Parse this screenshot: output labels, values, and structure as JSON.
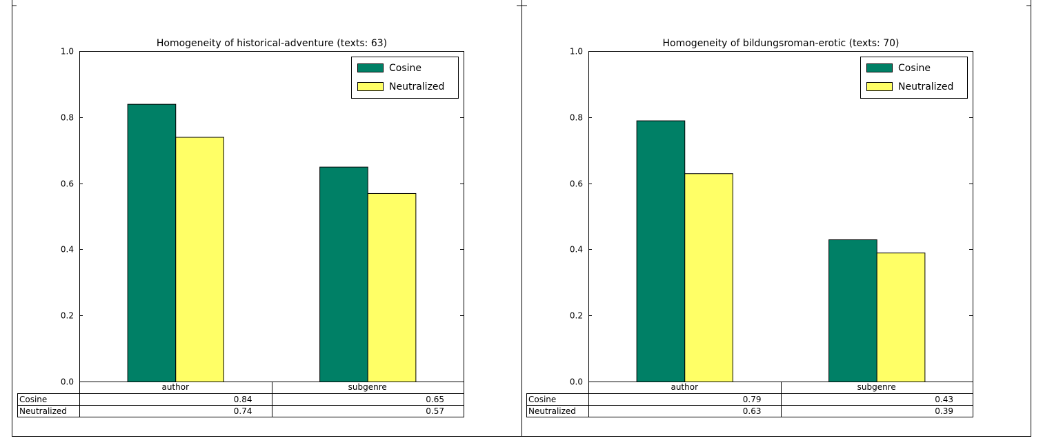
{
  "colors": {
    "cosine": "#008066",
    "neutralized": "#ffff66",
    "frame": "#000000",
    "background": "#ffffff"
  },
  "chart_data": [
    {
      "type": "bar",
      "title": "Homogeneity of historical-adventure (texts: 63)",
      "categories": [
        "author",
        "subgenre"
      ],
      "series": [
        {
          "name": "Cosine",
          "values": [
            0.84,
            0.65
          ]
        },
        {
          "name": "Neutralized",
          "values": [
            0.74,
            0.57
          ]
        }
      ],
      "ylim": [
        0.0,
        1.0
      ],
      "yticks": [
        "0.0",
        "0.2",
        "0.4",
        "0.6",
        "0.8",
        "1.0"
      ],
      "ytick_values": [
        0.0,
        0.2,
        0.4,
        0.6,
        0.8,
        1.0
      ],
      "legend": "top-right",
      "grid": false,
      "table": {
        "col_labels": [
          "author",
          "subgenre"
        ],
        "rows": [
          {
            "label": "Cosine",
            "cells": [
              "0.84",
              "0.65"
            ]
          },
          {
            "label": "Neutralized",
            "cells": [
              "0.74",
              "0.57"
            ]
          }
        ]
      }
    },
    {
      "type": "bar",
      "title": "Homogeneity of bildungsroman-erotic (texts: 70)",
      "categories": [
        "author",
        "subgenre"
      ],
      "series": [
        {
          "name": "Cosine",
          "values": [
            0.79,
            0.43
          ]
        },
        {
          "name": "Neutralized",
          "values": [
            0.63,
            0.39
          ]
        }
      ],
      "ylim": [
        0.0,
        1.0
      ],
      "yticks": [
        "0.0",
        "0.2",
        "0.4",
        "0.6",
        "0.8",
        "1.0"
      ],
      "ytick_values": [
        0.0,
        0.2,
        0.4,
        0.6,
        0.8,
        1.0
      ],
      "legend": "top-right",
      "grid": false,
      "table": {
        "col_labels": [
          "author",
          "subgenre"
        ],
        "rows": [
          {
            "label": "Cosine",
            "cells": [
              "0.79",
              "0.43"
            ]
          },
          {
            "label": "Neutralized",
            "cells": [
              "0.63",
              "0.39"
            ]
          }
        ]
      }
    }
  ]
}
